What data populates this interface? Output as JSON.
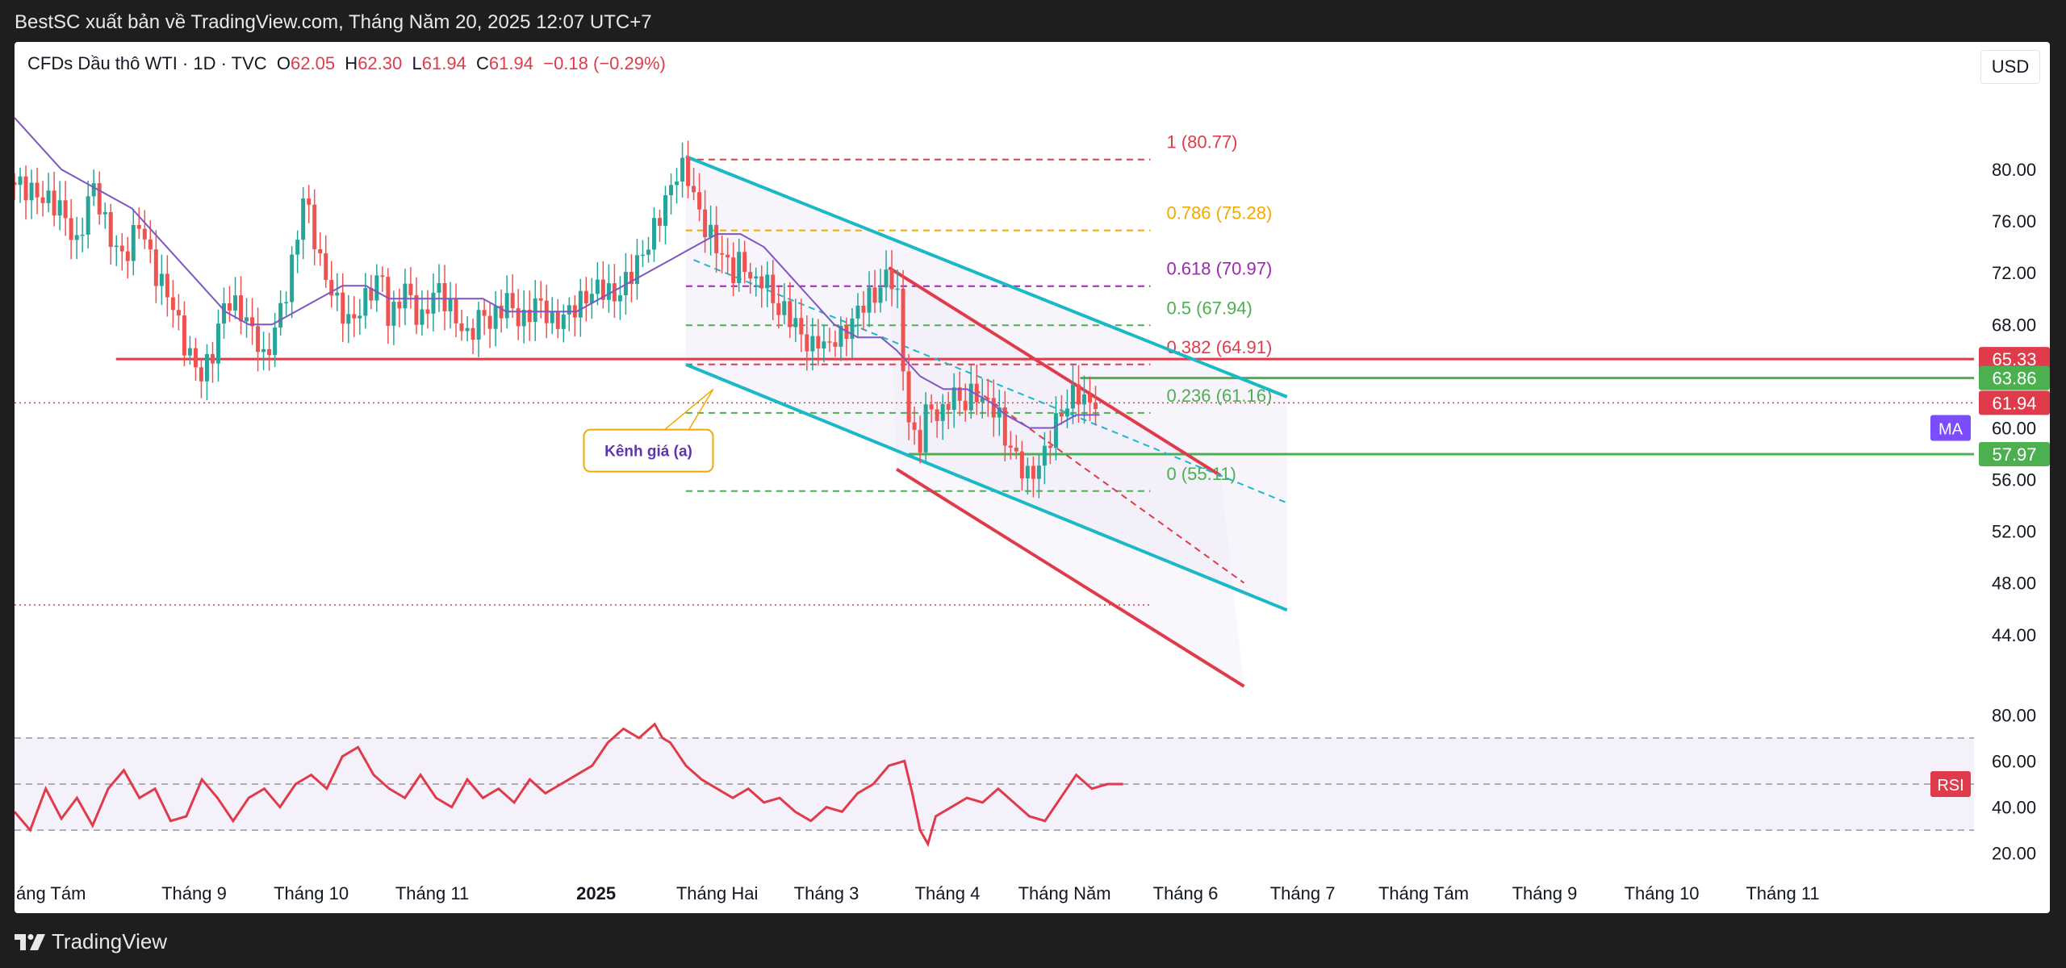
{
  "header": {
    "publisher_text": "BestSC xuất bản về TradingView.com, Tháng Năm 20, 2025 12:07 UTC+7"
  },
  "legend": {
    "symbol": "CFDs Dầu thô WTI · 1D · TVC",
    "o_label": "O",
    "o_value": "62.05",
    "h_label": "H",
    "h_value": "62.30",
    "l_label": "L",
    "l_value": "61.94",
    "c_label": "C",
    "c_value": "61.94",
    "change": "−0.18 (−0.29%)",
    "currency": "USD"
  },
  "footer": {
    "brand": "TradingView"
  },
  "colors": {
    "up": "#26a69a",
    "down": "#ef5350",
    "channel": "#1cb8c8",
    "red_line": "#e03b4b",
    "green_line": "#4caf50",
    "ma": "#7e57c2",
    "rsi": "#e03b4b",
    "fib_1": "#e03b4b",
    "fib_0786": "#f2a900",
    "fib_0618": "#9c27b0",
    "fib_05": "#4caf50",
    "fib_0382": "#e03b4b",
    "fib_0236": "#4caf50",
    "fib_0": "#4caf50",
    "annotation": "#f2a900"
  },
  "chart_data": {
    "type": "candlestick",
    "main_axis": {
      "ticks": [
        "80.00",
        "76.00",
        "72.00",
        "68.00",
        "64.00",
        "60.00",
        "56.00",
        "52.00",
        "48.00",
        "44.00"
      ],
      "ylim": [
        41.8,
        83.0
      ]
    },
    "rsi_axis": {
      "ticks": [
        "80.00",
        "60.00",
        "40.00",
        "20.00"
      ],
      "ylim": [
        15,
        85
      ],
      "upper_band": 70,
      "mid": 50,
      "lower_band": 30
    },
    "x_ticks": [
      "áng Tám",
      "Tháng 9",
      "Tháng 10",
      "Tháng 11",
      "2025",
      "Tháng Hai",
      "Tháng 3",
      "Tháng 4",
      "Tháng Năm",
      "Tháng 6",
      "Tháng 7",
      "Tháng Tám",
      "Tháng 9",
      "Tháng 10",
      "Tháng 11"
    ],
    "x_tick_days": [
      -12,
      20,
      50,
      81,
      123,
      154,
      182,
      213,
      243,
      274,
      304,
      335,
      366,
      396,
      427
    ],
    "x_range_days": [
      -26,
      476
    ],
    "close_path": [
      [
        -26,
        79
      ],
      [
        -20,
        78
      ],
      [
        -14,
        77
      ],
      [
        -10,
        74
      ],
      [
        -6,
        79
      ],
      [
        -2,
        75
      ],
      [
        2,
        73
      ],
      [
        6,
        76
      ],
      [
        10,
        72
      ],
      [
        14,
        70
      ],
      [
        18,
        66
      ],
      [
        22,
        64
      ],
      [
        25,
        66
      ],
      [
        28,
        70
      ],
      [
        32,
        69
      ],
      [
        36,
        67
      ],
      [
        38,
        65
      ],
      [
        41,
        68
      ],
      [
        44,
        71
      ],
      [
        46,
        74
      ],
      [
        48,
        78
      ],
      [
        50,
        76
      ],
      [
        52,
        73
      ],
      [
        56,
        70
      ],
      [
        60,
        68
      ],
      [
        64,
        70
      ],
      [
        68,
        72
      ],
      [
        70,
        68
      ],
      [
        74,
        71
      ],
      [
        78,
        68
      ],
      [
        82,
        71
      ],
      [
        86,
        69
      ],
      [
        90,
        67
      ],
      [
        94,
        69
      ],
      [
        96,
        68
      ],
      [
        100,
        70
      ],
      [
        104,
        68
      ],
      [
        108,
        70
      ],
      [
        112,
        68
      ],
      [
        116,
        69
      ],
      [
        120,
        70
      ],
      [
        124,
        71
      ],
      [
        128,
        70
      ],
      [
        132,
        72
      ],
      [
        136,
        74
      ],
      [
        140,
        77
      ],
      [
        144,
        80
      ],
      [
        146,
        80
      ],
      [
        148,
        78
      ],
      [
        150,
        76
      ],
      [
        152,
        75
      ],
      [
        154,
        74
      ],
      [
        156,
        73
      ],
      [
        158,
        72
      ],
      [
        160,
        73
      ],
      [
        162,
        72
      ],
      [
        164,
        71
      ],
      [
        166,
        72
      ],
      [
        168,
        70
      ],
      [
        170,
        69
      ],
      [
        172,
        69
      ],
      [
        174,
        68
      ],
      [
        176,
        67
      ],
      [
        178,
        66
      ],
      [
        180,
        67
      ],
      [
        182,
        66
      ],
      [
        184,
        67
      ],
      [
        186,
        67
      ],
      [
        188,
        68
      ],
      [
        190,
        69
      ],
      [
        192,
        70
      ],
      [
        194,
        70
      ],
      [
        196,
        71
      ],
      [
        198,
        72
      ],
      [
        200,
        71
      ],
      [
        201,
        66
      ],
      [
        202,
        64
      ],
      [
        203,
        61
      ],
      [
        204,
        58
      ],
      [
        205,
        60
      ],
      [
        206,
        59
      ],
      [
        208,
        62
      ],
      [
        210,
        61
      ],
      [
        212,
        61
      ],
      [
        214,
        63
      ],
      [
        216,
        62
      ],
      [
        218,
        62
      ],
      [
        220,
        63
      ],
      [
        222,
        62
      ],
      [
        224,
        62
      ],
      [
        226,
        61
      ],
      [
        228,
        59
      ],
      [
        230,
        58
      ],
      [
        232,
        57
      ],
      [
        234,
        56
      ],
      [
        236,
        57
      ],
      [
        238,
        58
      ],
      [
        240,
        60
      ],
      [
        242,
        61
      ],
      [
        244,
        62
      ],
      [
        246,
        63
      ],
      [
        248,
        62
      ],
      [
        250,
        62
      ],
      [
        252,
        62
      ]
    ],
    "ma_path": [
      [
        -26,
        84
      ],
      [
        -20,
        82
      ],
      [
        -14,
        80
      ],
      [
        -8,
        79
      ],
      [
        -2,
        78
      ],
      [
        4,
        77
      ],
      [
        10,
        75
      ],
      [
        16,
        73
      ],
      [
        22,
        71
      ],
      [
        28,
        69
      ],
      [
        34,
        68
      ],
      [
        40,
        68
      ],
      [
        46,
        69
      ],
      [
        52,
        70
      ],
      [
        58,
        71
      ],
      [
        64,
        71
      ],
      [
        70,
        70
      ],
      [
        76,
        70
      ],
      [
        82,
        70
      ],
      [
        88,
        70
      ],
      [
        94,
        70
      ],
      [
        100,
        69
      ],
      [
        106,
        69
      ],
      [
        112,
        69
      ],
      [
        118,
        69
      ],
      [
        124,
        70
      ],
      [
        130,
        71
      ],
      [
        136,
        72
      ],
      [
        142,
        73
      ],
      [
        148,
        74
      ],
      [
        154,
        75
      ],
      [
        160,
        75
      ],
      [
        166,
        74
      ],
      [
        172,
        72
      ],
      [
        178,
        70
      ],
      [
        184,
        68
      ],
      [
        190,
        67
      ],
      [
        196,
        67
      ],
      [
        200,
        66
      ],
      [
        206,
        64
      ],
      [
        212,
        63
      ],
      [
        218,
        63
      ],
      [
        224,
        62
      ],
      [
        228,
        61
      ],
      [
        234,
        60
      ],
      [
        240,
        60
      ],
      [
        246,
        61
      ],
      [
        252,
        61
      ]
    ],
    "rsi_path": [
      [
        -26,
        38
      ],
      [
        -22,
        30
      ],
      [
        -18,
        48
      ],
      [
        -14,
        35
      ],
      [
        -10,
        44
      ],
      [
        -6,
        32
      ],
      [
        -2,
        48
      ],
      [
        2,
        56
      ],
      [
        6,
        44
      ],
      [
        10,
        48
      ],
      [
        14,
        34
      ],
      [
        18,
        36
      ],
      [
        22,
        52
      ],
      [
        26,
        44
      ],
      [
        30,
        34
      ],
      [
        34,
        44
      ],
      [
        38,
        48
      ],
      [
        42,
        40
      ],
      [
        46,
        50
      ],
      [
        50,
        54
      ],
      [
        54,
        48
      ],
      [
        58,
        62
      ],
      [
        62,
        66
      ],
      [
        66,
        54
      ],
      [
        70,
        48
      ],
      [
        74,
        44
      ],
      [
        78,
        54
      ],
      [
        82,
        44
      ],
      [
        86,
        40
      ],
      [
        90,
        52
      ],
      [
        94,
        44
      ],
      [
        98,
        48
      ],
      [
        102,
        42
      ],
      [
        106,
        52
      ],
      [
        110,
        46
      ],
      [
        114,
        50
      ],
      [
        118,
        54
      ],
      [
        122,
        58
      ],
      [
        126,
        68
      ],
      [
        130,
        74
      ],
      [
        134,
        70
      ],
      [
        138,
        76
      ],
      [
        140,
        70
      ],
      [
        142,
        68
      ],
      [
        146,
        58
      ],
      [
        150,
        52
      ],
      [
        154,
        48
      ],
      [
        158,
        44
      ],
      [
        162,
        48
      ],
      [
        166,
        42
      ],
      [
        170,
        44
      ],
      [
        174,
        38
      ],
      [
        178,
        34
      ],
      [
        182,
        40
      ],
      [
        186,
        38
      ],
      [
        190,
        46
      ],
      [
        194,
        50
      ],
      [
        198,
        58
      ],
      [
        202,
        60
      ],
      [
        204,
        46
      ],
      [
        206,
        30
      ],
      [
        208,
        24
      ],
      [
        210,
        36
      ],
      [
        214,
        40
      ],
      [
        218,
        44
      ],
      [
        222,
        42
      ],
      [
        226,
        48
      ],
      [
        230,
        42
      ],
      [
        234,
        36
      ],
      [
        238,
        34
      ],
      [
        242,
        44
      ],
      [
        246,
        54
      ],
      [
        250,
        48
      ],
      [
        254,
        50
      ],
      [
        258,
        50
      ]
    ],
    "fib_levels": [
      {
        "label": "1 (80.77)",
        "value": 80.77
      },
      {
        "label": "0.786 (75.28)",
        "value": 75.28
      },
      {
        "label": "0.618 (70.97)",
        "value": 70.97
      },
      {
        "label": "0.5 (67.94)",
        "value": 67.94
      },
      {
        "label": "0.382 (64.91)",
        "value": 64.91
      },
      {
        "label": "0.236 (61.16)",
        "value": 61.16
      },
      {
        "label": "0 (55.11)",
        "value": 55.11
      }
    ],
    "price_labels": [
      {
        "text": "65.33",
        "value": 65.33,
        "style": "red"
      },
      {
        "text": "63.86",
        "value": 63.86,
        "style": "green"
      },
      {
        "text": "61.94",
        "value": 61.94,
        "style": "red"
      },
      {
        "text": "57.97",
        "value": 57.97,
        "style": "green"
      }
    ],
    "indicator_labels": {
      "ma": "MA",
      "rsi": "RSI"
    },
    "annotation": {
      "text": "Kênh giá (a)"
    },
    "horizontal_lines": [
      {
        "name": "resistance-65",
        "value": 65.33,
        "from_day": 0,
        "to_day": 476
      },
      {
        "name": "level-63-86",
        "value": 63.86,
        "from_day": 247,
        "to_day": 476
      },
      {
        "name": "level-57-97",
        "value": 57.97,
        "from_day": 203,
        "to_day": 476
      },
      {
        "name": "last-price-dotted",
        "value": 61.94,
        "from_day": -26,
        "to_day": 476
      },
      {
        "name": "low-dotted",
        "value": 46.3,
        "from_day": -26,
        "to_day": 265
      }
    ],
    "trend_lines": [
      {
        "name": "channel-upper",
        "x1": 146,
        "y1": 81.0,
        "x2": 300,
        "y2": 62.4
      },
      {
        "name": "channel-lower",
        "x1": 146,
        "y1": 64.9,
        "x2": 300,
        "y2": 45.9
      },
      {
        "name": "red-channel-upper",
        "x1": 198,
        "y1": 72.4,
        "x2": 283,
        "y2": 56.3
      },
      {
        "name": "red-channel-lower",
        "x1": 200,
        "y1": 56.8,
        "x2": 289,
        "y2": 40.0
      }
    ],
    "dashed_trends": [
      {
        "name": "channel-mid",
        "x1": 148,
        "y1": 73.0,
        "x2": 300,
        "y2": 54.2
      },
      {
        "name": "red-channel-mid",
        "x1": 220,
        "y1": 63.0,
        "x2": 289,
        "y2": 48.0
      }
    ]
  }
}
